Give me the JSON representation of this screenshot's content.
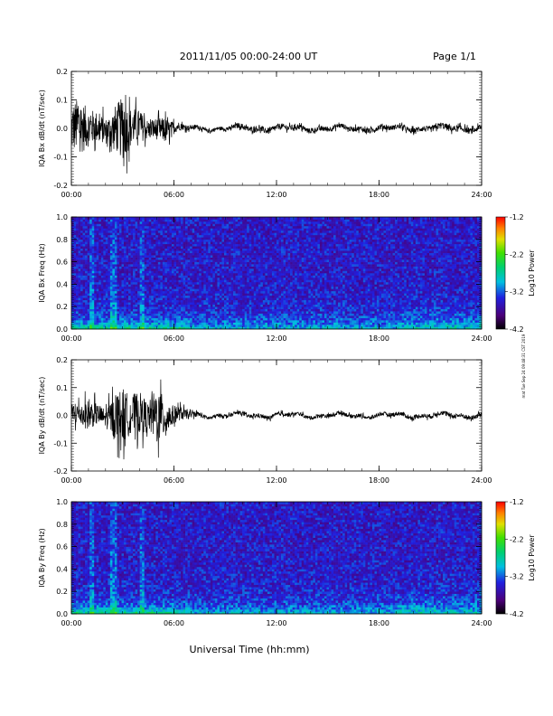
{
  "header": {
    "title": "2011/11/05  00:00-24:00 UT",
    "page": "Page 1/1"
  },
  "footer": {
    "xlabel": "Universal Time (hh:mm)",
    "side_stamp": "mat Tue Sep 24 09:48:31 CST 2019"
  },
  "chart_data": [
    {
      "type": "line",
      "ylabel": "IQA Bx dB/dt (nT/sec)",
      "xlabel": "",
      "x_ticks": [
        "00:00",
        "06:00",
        "12:00",
        "18:00",
        "24:00"
      ],
      "xlim": [
        0,
        24
      ],
      "ylim": [
        -0.2,
        0.2
      ],
      "y_ticks": [
        "-0.2",
        "-0.1",
        "0.0",
        "0.1",
        "0.2"
      ],
      "series": [
        {
          "x": [
            0,
            0.5,
            1,
            1.5,
            2,
            2.5,
            3,
            3.5,
            4,
            4.5,
            5,
            5.5,
            6,
            6.5,
            7,
            8,
            9,
            10,
            11,
            12,
            13,
            14,
            15,
            16,
            17,
            18,
            19,
            20,
            21,
            22,
            23,
            24
          ],
          "amplitude": [
            0.16,
            0.18,
            0.12,
            0.1,
            0.08,
            0.14,
            0.2,
            0.12,
            0.1,
            0.06,
            0.07,
            0.08,
            0.04,
            0.02,
            0.015,
            0.012,
            0.012,
            0.018,
            0.02,
            0.02,
            0.018,
            0.016,
            0.018,
            0.016,
            0.016,
            0.02,
            0.015,
            0.018,
            0.02,
            0.022,
            0.02,
            0.018
          ]
        }
      ]
    },
    {
      "type": "heatmap",
      "ylabel": "IQA Bx Freq (Hz)",
      "x_ticks": [
        "00:00",
        "06:00",
        "12:00",
        "18:00",
        "24:00"
      ],
      "xlim": [
        0,
        24
      ],
      "ylim": [
        0,
        1.0
      ],
      "y_ticks": [
        "0.0",
        "0.2",
        "0.4",
        "0.6",
        "0.8",
        "1.0"
      ],
      "colorbar": {
        "label": "Log10 Power",
        "ticks": [
          "-1.2",
          "-2.2",
          "-3.2",
          "-4.2"
        ],
        "range": [
          -4.2,
          -1.2
        ]
      }
    },
    {
      "type": "line",
      "ylabel": "IQA By dB/dt (nT/sec)",
      "x_ticks": [
        "00:00",
        "06:00",
        "12:00",
        "18:00",
        "24:00"
      ],
      "xlim": [
        0,
        24
      ],
      "ylim": [
        -0.2,
        0.2
      ],
      "y_ticks": [
        "-0.2",
        "-0.1",
        "0.0",
        "0.1",
        "0.2"
      ],
      "series": [
        {
          "x": [
            0,
            0.5,
            1,
            1.5,
            2,
            2.5,
            3,
            3.5,
            4,
            4.5,
            5,
            5.5,
            6,
            6.5,
            7,
            8,
            9,
            10,
            11,
            12,
            13,
            14,
            15,
            16,
            17,
            18,
            19,
            20,
            21,
            22,
            23,
            24
          ],
          "amplitude": [
            0.08,
            0.07,
            0.1,
            0.07,
            0.06,
            0.14,
            0.18,
            0.12,
            0.14,
            0.09,
            0.19,
            0.12,
            0.06,
            0.04,
            0.02,
            0.014,
            0.012,
            0.012,
            0.014,
            0.014,
            0.013,
            0.012,
            0.014,
            0.013,
            0.012,
            0.013,
            0.014,
            0.014,
            0.016,
            0.016,
            0.016,
            0.016
          ]
        }
      ]
    },
    {
      "type": "heatmap",
      "ylabel": "IQA By Freq (Hz)",
      "x_ticks": [
        "00:00",
        "06:00",
        "12:00",
        "18:00",
        "24:00"
      ],
      "xlim": [
        0,
        24
      ],
      "ylim": [
        0,
        1.0
      ],
      "y_ticks": [
        "0.0",
        "0.2",
        "0.4",
        "0.6",
        "0.8",
        "1.0"
      ],
      "colorbar": {
        "label": "Log10 Power",
        "ticks": [
          "-1.2",
          "-2.2",
          "-3.2",
          "-4.2"
        ],
        "range": [
          -4.2,
          -1.2
        ]
      }
    }
  ]
}
